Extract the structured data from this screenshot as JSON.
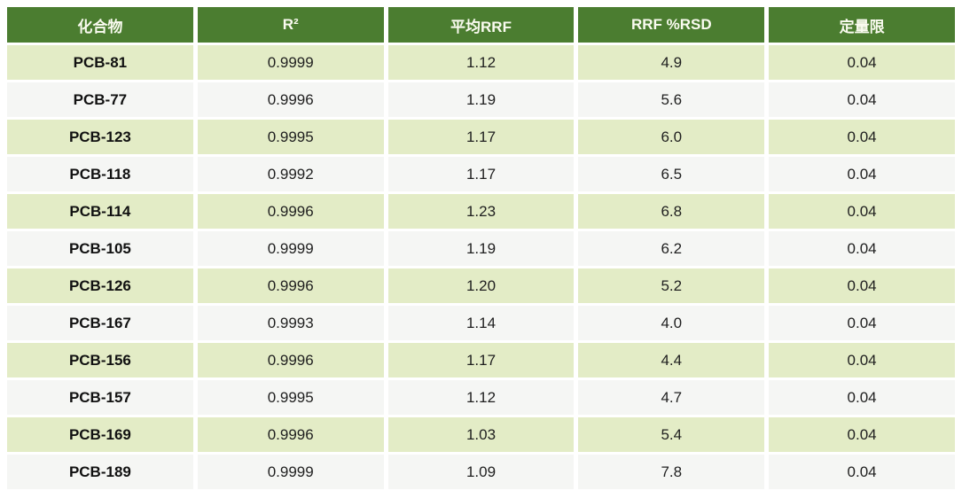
{
  "chart_data": {
    "type": "table",
    "columns": [
      "化合物",
      "R²",
      "平均RRF",
      "RRF %RSD",
      "定量限"
    ],
    "rows": [
      [
        "PCB-81",
        "0.9999",
        "1.12",
        "4.9",
        "0.04"
      ],
      [
        "PCB-77",
        "0.9996",
        "1.19",
        "5.6",
        "0.04"
      ],
      [
        "PCB-123",
        "0.9995",
        "1.17",
        "6.0",
        "0.04"
      ],
      [
        "PCB-118",
        "0.9992",
        "1.17",
        "6.5",
        "0.04"
      ],
      [
        "PCB-114",
        "0.9996",
        "1.23",
        "6.8",
        "0.04"
      ],
      [
        "PCB-105",
        "0.9999",
        "1.19",
        "6.2",
        "0.04"
      ],
      [
        "PCB-126",
        "0.9996",
        "1.20",
        "5.2",
        "0.04"
      ],
      [
        "PCB-167",
        "0.9993",
        "1.14",
        "4.0",
        "0.04"
      ],
      [
        "PCB-156",
        "0.9996",
        "1.17",
        "4.4",
        "0.04"
      ],
      [
        "PCB-157",
        "0.9995",
        "1.12",
        "4.7",
        "0.04"
      ],
      [
        "PCB-169",
        "0.9996",
        "1.03",
        "5.4",
        "0.04"
      ],
      [
        "PCB-189",
        "0.9999",
        "1.09",
        "7.8",
        "0.04"
      ]
    ],
    "layout": {
      "legend": "none",
      "grid": "cell-gap-white",
      "column_count": 5,
      "row_count": 12
    }
  },
  "colors": {
    "header_bg": "#4b7d30",
    "header_text": "#fafbf0",
    "row_odd_bg": "#e3ecc6",
    "row_even_bg": "#f5f6f4",
    "cell_text": "#1f1f1f"
  }
}
